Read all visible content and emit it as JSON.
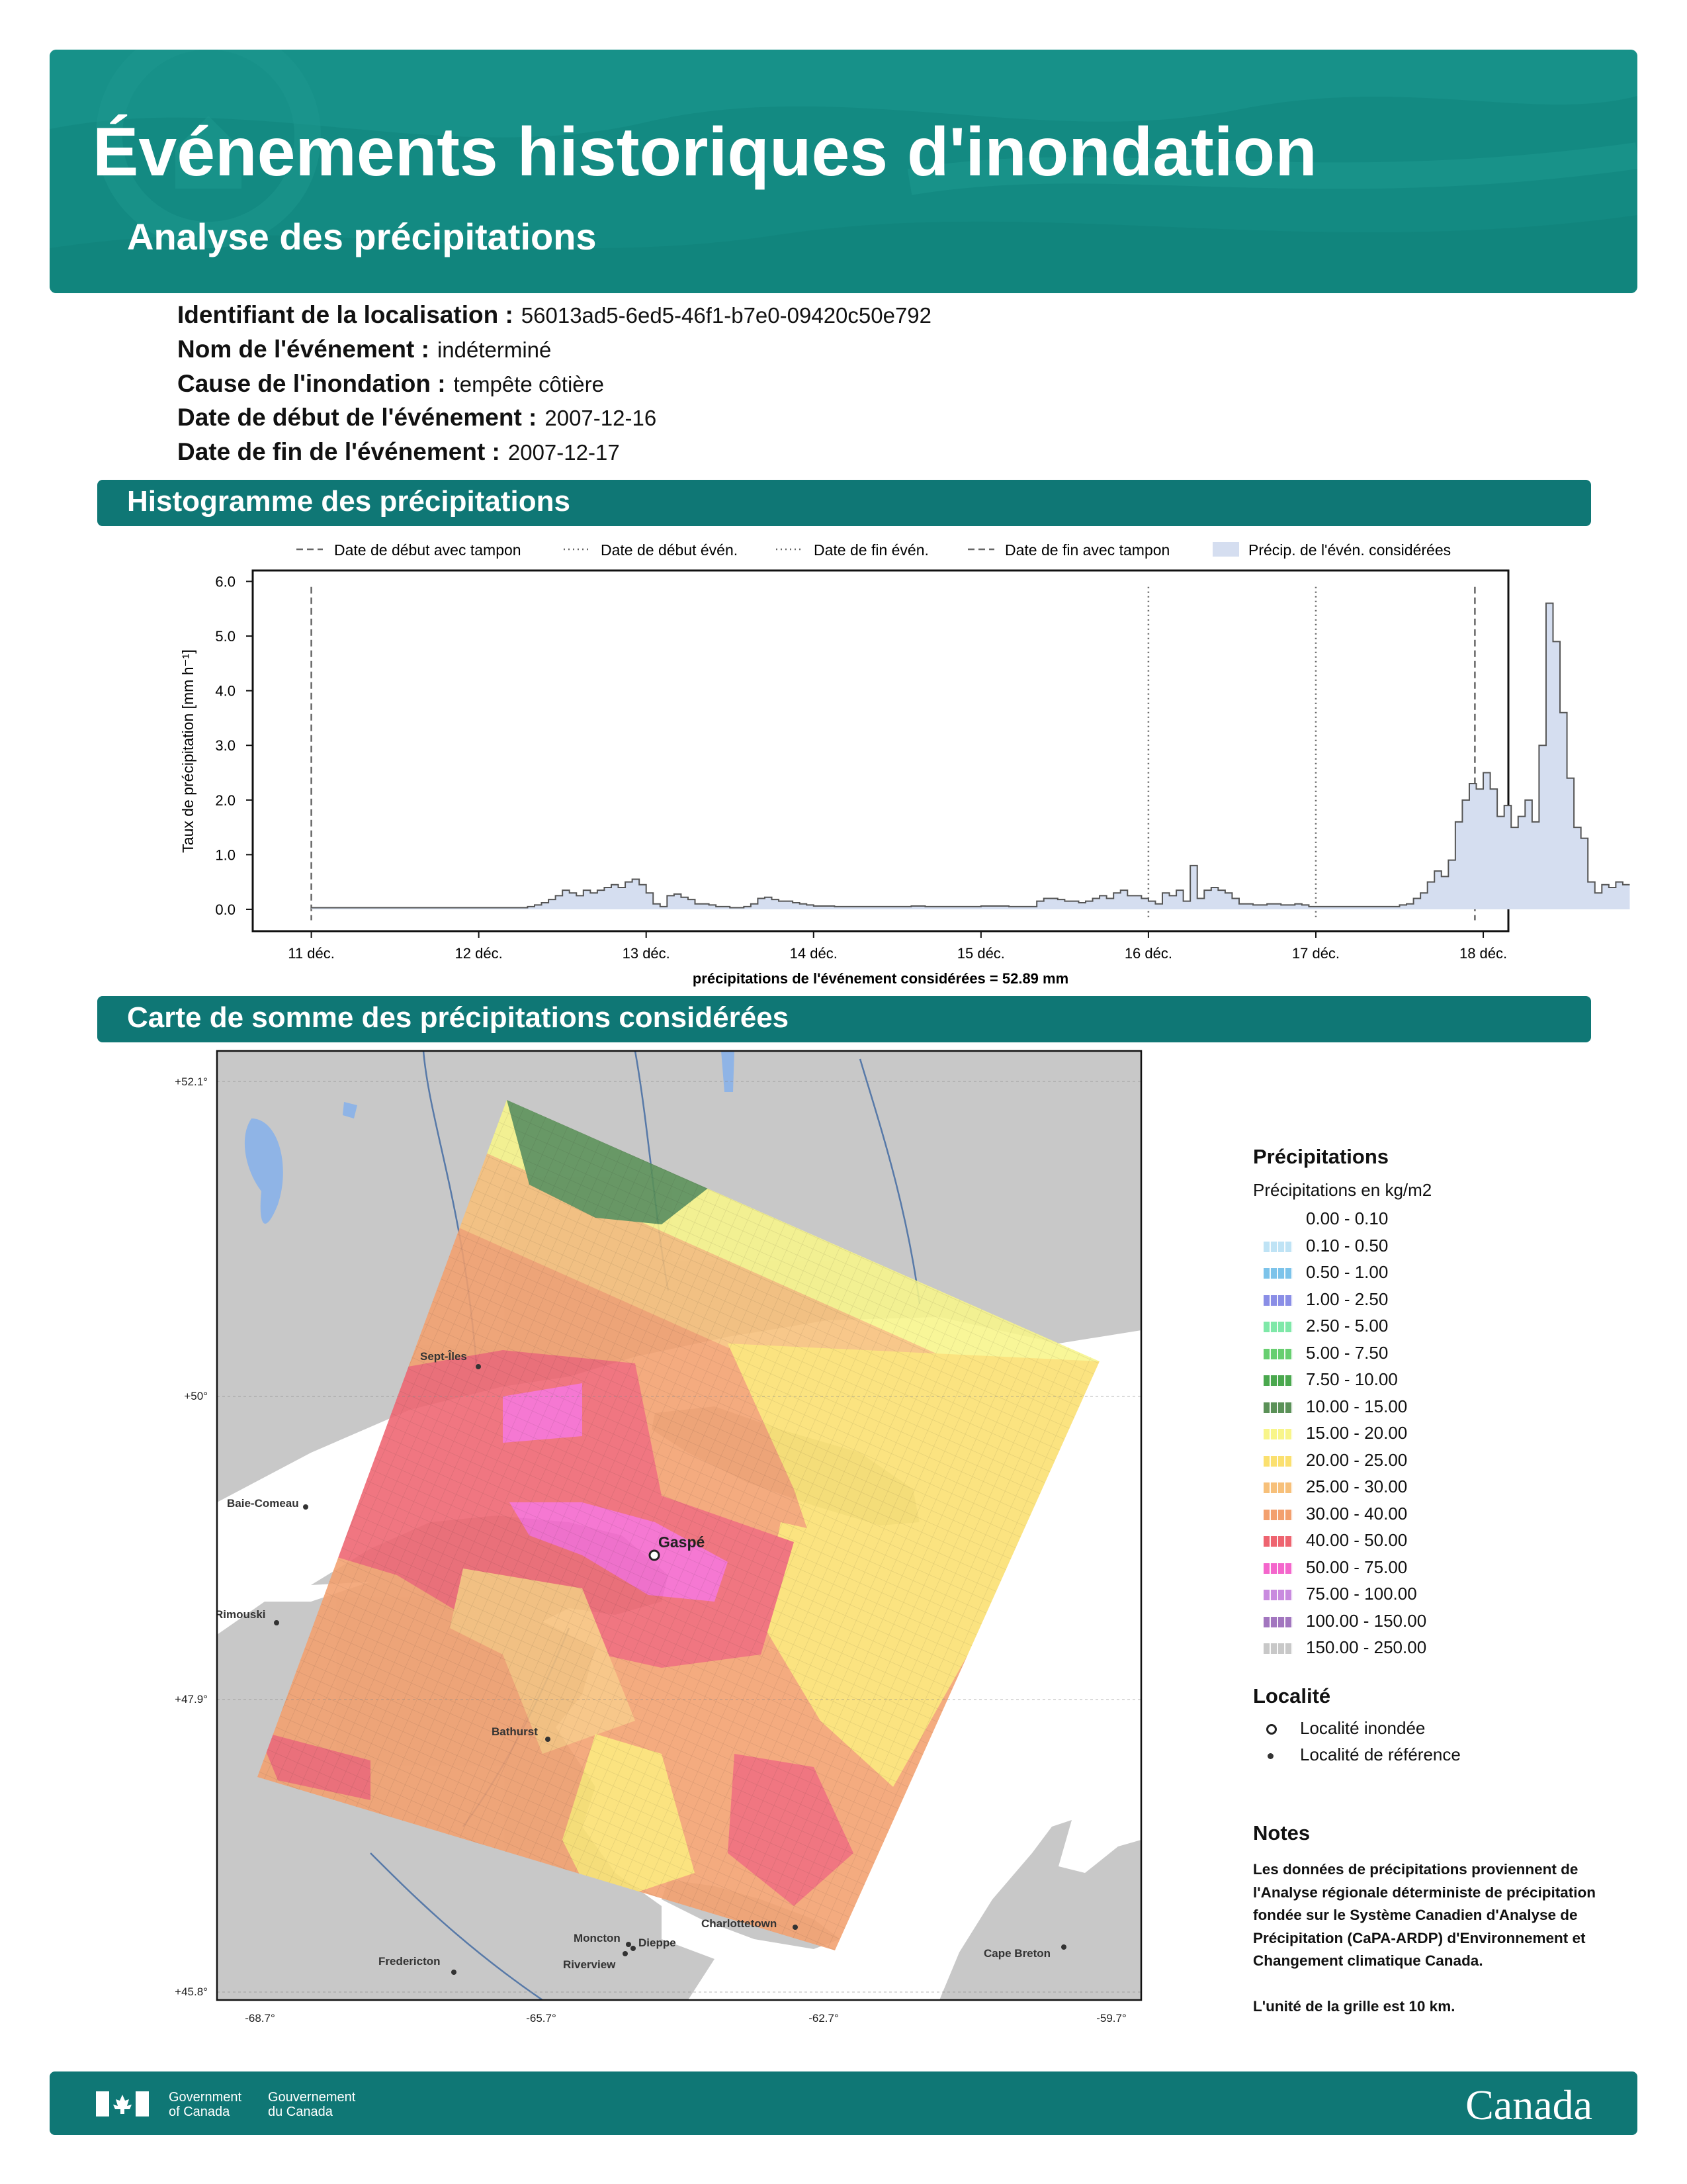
{
  "header": {
    "title": "Événements historiques d'inondation",
    "subtitle": "Analyse des précipitations"
  },
  "info": [
    {
      "label": "Identifiant de la localisation :",
      "value": "56013ad5-6ed5-46f1-b7e0-09420c50e792"
    },
    {
      "label": "Nom de l'événement :",
      "value": "indéterminé"
    },
    {
      "label": "Cause de l'inondation :",
      "value": "tempête côtière"
    },
    {
      "label": "Date de début de l'événement :",
      "value": "2007-12-16"
    },
    {
      "label": "Date de fin de l'événement :",
      "value": "2007-12-17"
    }
  ],
  "sections": {
    "histogram": "Histogramme des précipitations",
    "map": "Carte de somme des précipitations considérées"
  },
  "chart_data": {
    "type": "area",
    "ylabel": "Taux de précipitation [mm h⁻¹]",
    "xlabel": "précipitations de l'événement considérées = 52.89 mm",
    "ylim": [
      -0.4,
      6.2
    ],
    "xlim": [
      -0.35,
      7.15
    ],
    "yticks": [
      "0.0",
      "1.0",
      "2.0",
      "3.0",
      "4.0",
      "5.0",
      "6.0"
    ],
    "xticks": [
      "11 déc.",
      "12 déc.",
      "13 déc.",
      "14 déc.",
      "15 déc.",
      "16 déc.",
      "17 déc.",
      "18 déc."
    ],
    "legend": [
      {
        "label": "Date de début avec tampon",
        "style": "dashed"
      },
      {
        "label": "Date de début évén.",
        "style": "dotted"
      },
      {
        "label": "Date de fin évén.",
        "style": "dotted"
      },
      {
        "label": "Date de fin avec tampon",
        "style": "dashed"
      },
      {
        "label": "Précip. de l'évén. considérées",
        "style": "fill"
      }
    ],
    "legend_position": "top",
    "vlines": [
      {
        "x": 0,
        "style": "dashed"
      },
      {
        "x": 5,
        "style": "dotted"
      },
      {
        "x": 6,
        "style": "dotted"
      },
      {
        "x": 6.95,
        "style": "dashed"
      }
    ],
    "series": [
      {
        "step_hours": 1,
        "values": [
          0.03,
          0.03,
          0.03,
          0.03,
          0.03,
          0.03,
          0.03,
          0.03,
          0.03,
          0.03,
          0.03,
          0.03,
          0.03,
          0.03,
          0.03,
          0.03,
          0.03,
          0.03,
          0.03,
          0.03,
          0.03,
          0.03,
          0.03,
          0.03,
          0.03,
          0.03,
          0.03,
          0.03,
          0.03,
          0.03,
          0.03,
          0.05,
          0.08,
          0.12,
          0.18,
          0.25,
          0.35,
          0.3,
          0.25,
          0.35,
          0.3,
          0.35,
          0.4,
          0.45,
          0.4,
          0.5,
          0.55,
          0.45,
          0.3,
          0.1,
          0.05,
          0.25,
          0.28,
          0.22,
          0.18,
          0.1,
          0.1,
          0.08,
          0.05,
          0.05,
          0.03,
          0.03,
          0.05,
          0.1,
          0.2,
          0.22,
          0.18,
          0.15,
          0.15,
          0.12,
          0.1,
          0.08,
          0.06,
          0.06,
          0.06,
          0.05,
          0.05,
          0.05,
          0.05,
          0.05,
          0.05,
          0.05,
          0.05,
          0.05,
          0.05,
          0.05,
          0.06,
          0.06,
          0.05,
          0.05,
          0.05,
          0.05,
          0.05,
          0.05,
          0.05,
          0.05,
          0.06,
          0.06,
          0.06,
          0.06,
          0.05,
          0.05,
          0.05,
          0.05,
          0.15,
          0.2,
          0.2,
          0.18,
          0.15,
          0.15,
          0.12,
          0.15,
          0.2,
          0.25,
          0.2,
          0.3,
          0.35,
          0.25,
          0.25,
          0.2,
          0.15,
          0.1,
          0.3,
          0.25,
          0.35,
          0.15,
          0.8,
          0.2,
          0.35,
          0.4,
          0.35,
          0.3,
          0.2,
          0.1,
          0.1,
          0.08,
          0.08,
          0.1,
          0.1,
          0.08,
          0.08,
          0.1,
          0.08,
          0.05,
          0.05,
          0.05,
          0.05,
          0.05,
          0.05,
          0.05,
          0.05,
          0.05,
          0.05,
          0.05,
          0.05,
          0.05,
          0.08,
          0.1,
          0.2,
          0.3,
          0.5,
          0.7,
          0.6,
          0.9,
          1.6,
          2.0,
          2.3,
          2.2,
          2.5,
          2.2,
          1.7,
          1.9,
          1.5,
          1.7,
          2.0,
          1.6,
          3.0,
          5.6,
          4.9,
          3.6,
          2.4,
          1.5,
          1.3,
          0.5,
          0.3,
          0.45,
          0.4,
          0.5,
          0.45
        ]
      }
    ]
  },
  "map": {
    "lat_labels": [
      "+52.1°",
      "+50°",
      "+47.9°",
      "+45.8°"
    ],
    "lon_labels": [
      "-68.7°",
      "-65.7°",
      "-62.7°",
      "-59.7°"
    ],
    "places": [
      {
        "name": "Sept-Îles"
      },
      {
        "name": "Baie-Comeau"
      },
      {
        "name": "Rimouski"
      },
      {
        "name": "Gaspé"
      },
      {
        "name": "Bathurst"
      },
      {
        "name": "Charlottetown"
      },
      {
        "name": "Moncton"
      },
      {
        "name": "Dieppe"
      },
      {
        "name": "Riverview"
      },
      {
        "name": "Fredericton"
      },
      {
        "name": "Cape Breton"
      }
    ]
  },
  "legend": {
    "precip_title": "Précipitations",
    "precip_subtitle": "Précipitations en kg/m2",
    "classes": [
      {
        "label": "0.00 - 0.10",
        "color": "#ffffff"
      },
      {
        "label": "0.10 - 0.50",
        "color": "#bfe3f5"
      },
      {
        "label": "0.50 - 1.00",
        "color": "#7cc3ea"
      },
      {
        "label": "1.00 - 2.50",
        "color": "#8a8ee6"
      },
      {
        "label": "2.50 - 5.00",
        "color": "#7fe8a8"
      },
      {
        "label": "5.00 - 7.50",
        "color": "#67cf70"
      },
      {
        "label": "7.50 - 10.00",
        "color": "#4aa84e"
      },
      {
        "label": "10.00 - 15.00",
        "color": "#5b9158"
      },
      {
        "label": "15.00 - 20.00",
        "color": "#f8f58a"
      },
      {
        "label": "20.00 - 25.00",
        "color": "#fbe06f"
      },
      {
        "label": "25.00 - 30.00",
        "color": "#f7c07a"
      },
      {
        "label": "30.00 - 40.00",
        "color": "#f3a06e"
      },
      {
        "label": "40.00 - 50.00",
        "color": "#ee6470"
      },
      {
        "label": "50.00 - 75.00",
        "color": "#f466cc"
      },
      {
        "label": "75.00 - 100.00",
        "color": "#c98bdf"
      },
      {
        "label": "100.00 - 150.00",
        "color": "#a276bf"
      },
      {
        "label": "150.00 - 250.00",
        "color": "#c8c8c8"
      }
    ],
    "locality_title": "Localité",
    "locality_flooded": "Localité inondée",
    "locality_reference": "Localité de référence",
    "notes_title": "Notes",
    "notes_body": "Les données de précipitations proviennent de l'Analyse régionale déterministe de précipitation fondée sur le Système Canadien d'Analyse de Précipitation (CaPA-ARDP) d'Environnement et Changement climatique Canada.",
    "notes_grid": "L'unité de la grille est 10 km."
  },
  "footer": {
    "gov_en": "Government of Canada",
    "gov_fr": "Gouvernement du Canada",
    "wordmark": "Canada"
  },
  "colors": {
    "banner": "#138a82",
    "section": "#0f7775",
    "precip_fill": "#d5def0",
    "land": "#c8c8c8",
    "water": "#ffffff"
  }
}
